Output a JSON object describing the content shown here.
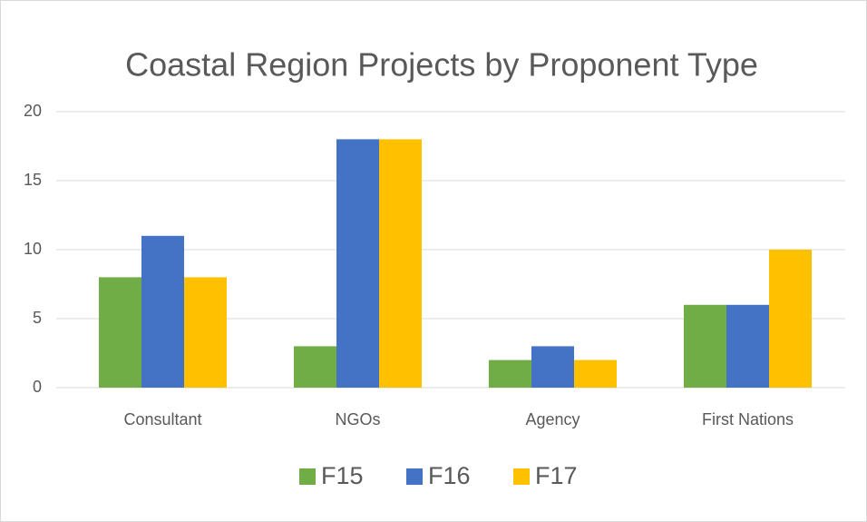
{
  "chart_data": {
    "type": "bar",
    "title": "Coastal Region Projects by Proponent Type",
    "categories": [
      "Consultant",
      "NGOs",
      "Agency",
      "First Nations"
    ],
    "series": [
      {
        "name": "F15",
        "color": "#70ad47",
        "values": [
          8,
          3,
          2,
          6
        ]
      },
      {
        "name": "F16",
        "color": "#4472c4",
        "values": [
          11,
          18,
          3,
          6
        ]
      },
      {
        "name": "F17",
        "color": "#ffc000",
        "values": [
          8,
          18,
          2,
          10
        ]
      }
    ],
    "ylim": [
      0,
      20
    ],
    "yticks": [
      0,
      5,
      10,
      15,
      20
    ],
    "grid": true,
    "legend": "bottom"
  }
}
